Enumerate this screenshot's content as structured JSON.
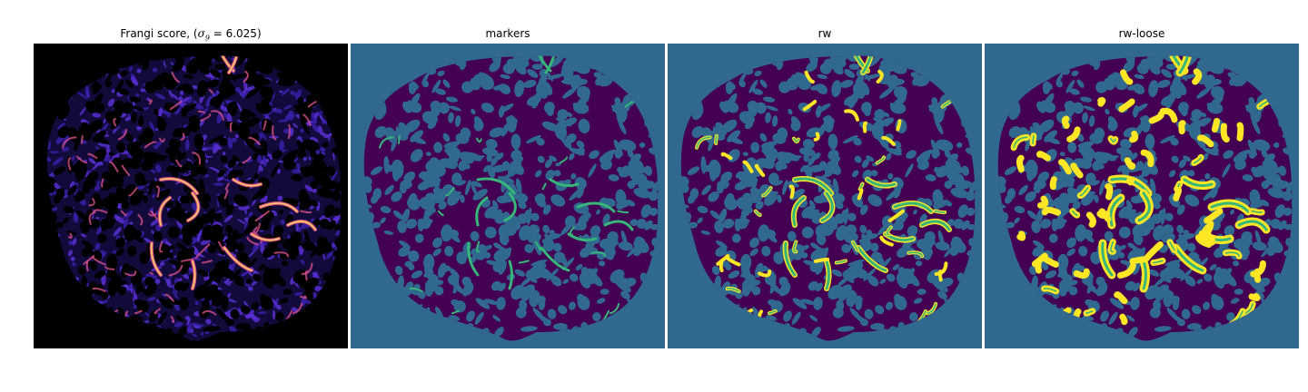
{
  "figure": {
    "panels": [
      {
        "id": "frangi",
        "title_prefix": "Frangi score, (",
        "title_symbol": "σ",
        "title_subscript": "9",
        "title_suffix": " = 6.025)"
      },
      {
        "id": "markers",
        "title": "markers"
      },
      {
        "id": "rw",
        "title": "rw"
      },
      {
        "id": "rw-loose",
        "title": "rw-loose"
      }
    ]
  },
  "colors": {
    "frangi_background": "#000000",
    "tissue_dark": "#120a3a",
    "tissue_mid": "#3b1fa8",
    "tissue_light": "#5a2fd4",
    "vessel_hot": "#d74f8a",
    "vessel_bright": "#ffd060",
    "label_background": "#31688e",
    "label_tissue": "#440154",
    "label_marker": "#35b779",
    "label_vessel": "#fde725"
  }
}
